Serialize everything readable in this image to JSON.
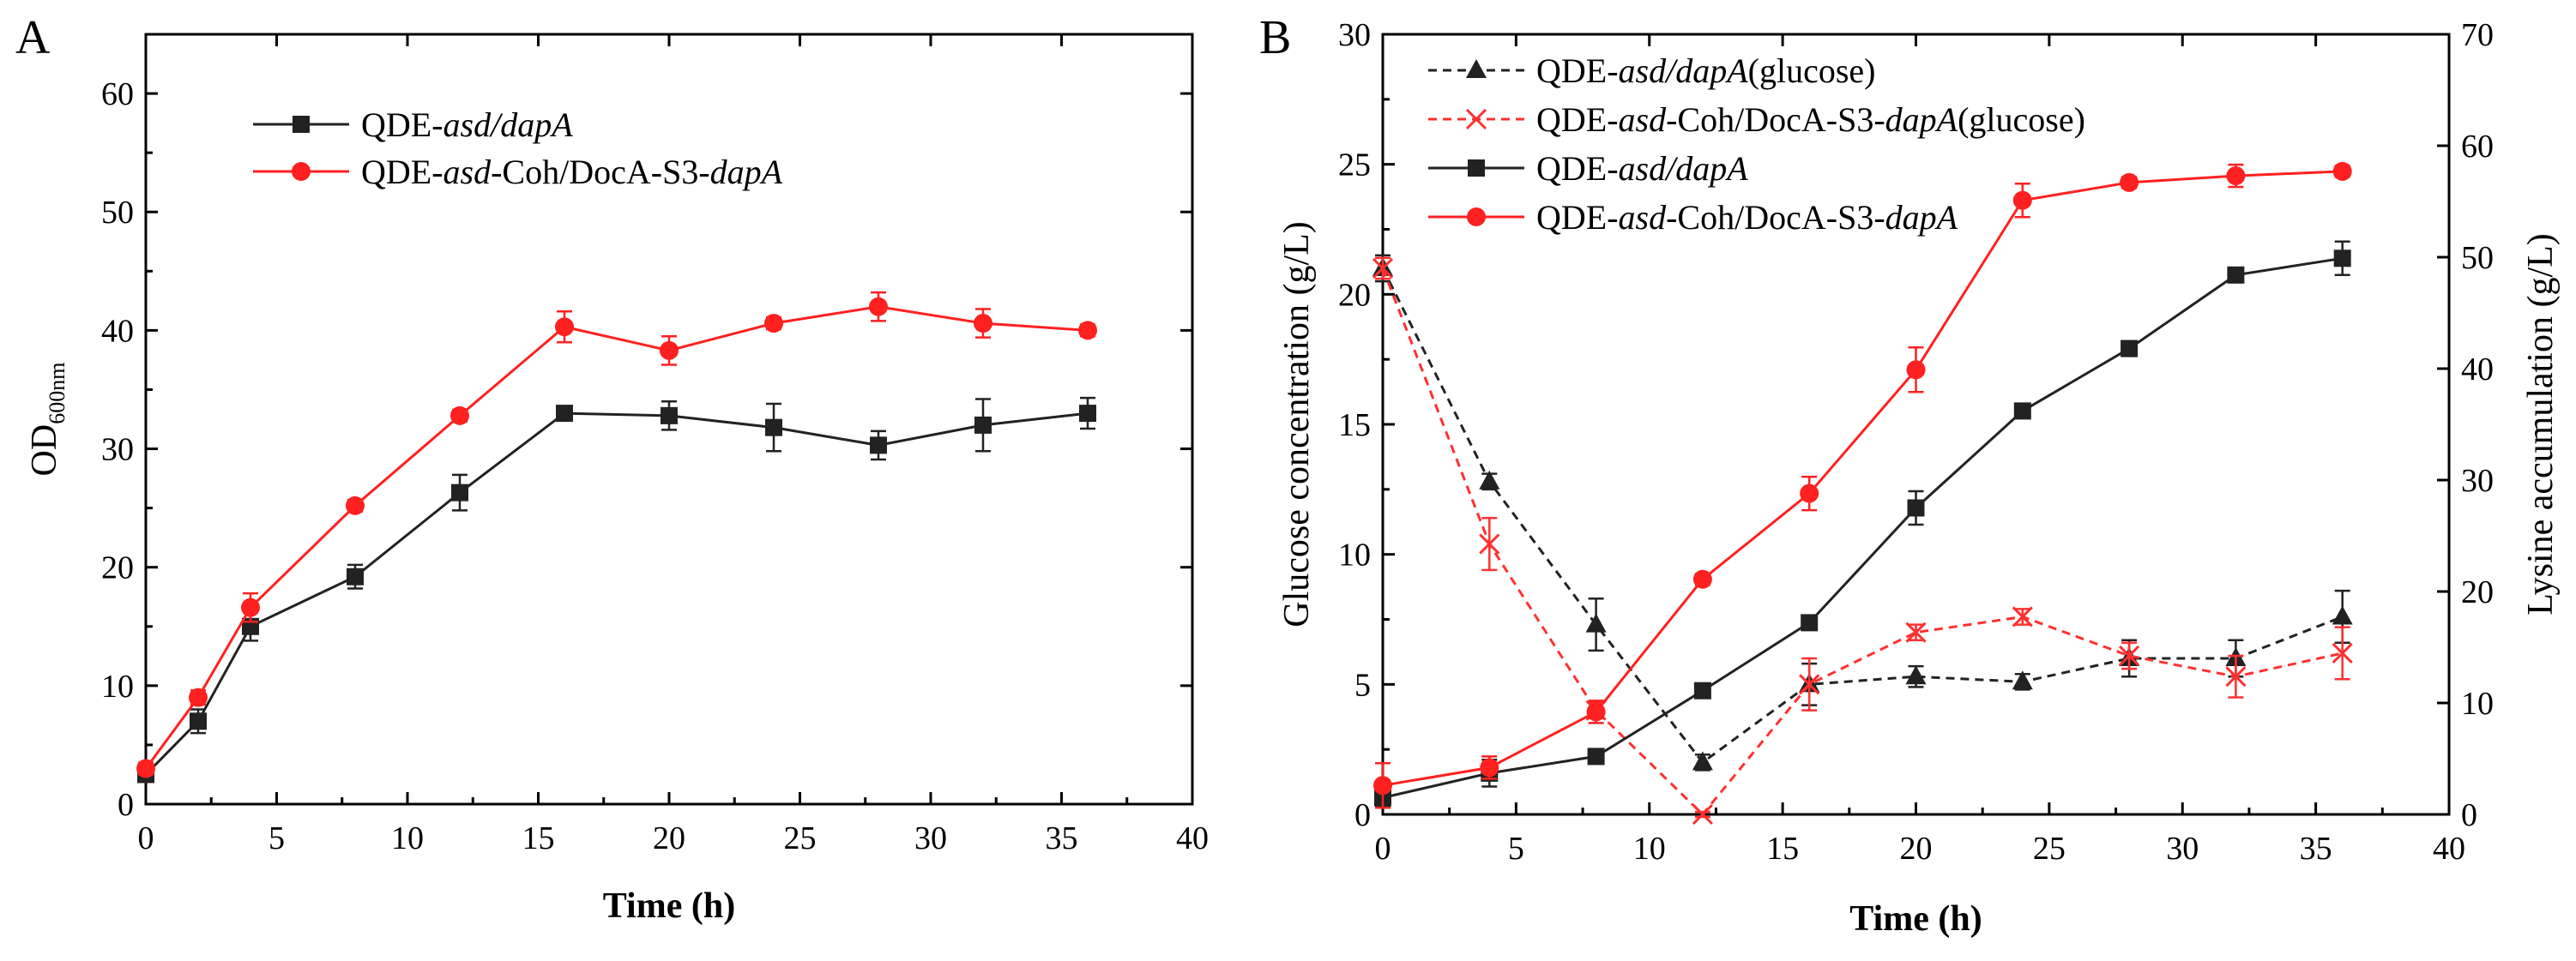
{
  "chart_data": [
    {
      "panel": "A",
      "type": "line",
      "xlabel": "Time (h)",
      "ylabel_main": "OD",
      "ylabel_sub": "600nm",
      "xlim": [
        0,
        40
      ],
      "ylim": [
        0,
        65
      ],
      "xticks": [
        0,
        5,
        10,
        15,
        20,
        25,
        30,
        35,
        40
      ],
      "yticks": [
        0,
        10,
        20,
        30,
        40,
        50,
        60
      ],
      "legend_position": "top-left",
      "series": [
        {
          "name_parts": [
            {
              "t": "QDE-",
              "i": false
            },
            {
              "t": "asd/dapA",
              "i": true
            }
          ],
          "color": "#222222",
          "marker": "square",
          "dash": false,
          "x": [
            0,
            2,
            4,
            8,
            12,
            16,
            20,
            24,
            28,
            32,
            36
          ],
          "y": [
            2.5,
            7,
            15,
            19.2,
            26.3,
            33,
            32.8,
            31.8,
            30.3,
            32,
            33
          ],
          "err": [
            0.6,
            1.0,
            1.2,
            1.0,
            1.5,
            0.4,
            1.2,
            2.0,
            1.2,
            2.2,
            1.3
          ]
        },
        {
          "name_parts": [
            {
              "t": "QDE-",
              "i": false
            },
            {
              "t": "asd",
              "i": true
            },
            {
              "t": "-Coh/DocA-S3-",
              "i": false
            },
            {
              "t": "dapA",
              "i": true
            }
          ],
          "color": "#ff2020",
          "marker": "circle",
          "dash": false,
          "x": [
            0,
            2,
            4,
            8,
            12,
            16,
            20,
            24,
            28,
            32,
            36
          ],
          "y": [
            3,
            9,
            16.6,
            25.2,
            32.8,
            40.3,
            38.3,
            40.6,
            42,
            40.6,
            40
          ],
          "err": [
            0.5,
            0.6,
            1.2,
            0.5,
            0.5,
            1.3,
            1.2,
            0.5,
            1.2,
            1.2,
            0.5
          ]
        }
      ]
    },
    {
      "panel": "B",
      "type": "line",
      "xlabel": "Time (h)",
      "ylabel_left": "Glucose  concentration (g/L)",
      "ylabel_right": "Lysine accumulation (g/L)",
      "xlim": [
        0,
        40
      ],
      "ylim_left": [
        0,
        30
      ],
      "ylim_right": [
        0,
        70
      ],
      "xticks": [
        0,
        5,
        10,
        15,
        20,
        25,
        30,
        35,
        40
      ],
      "yticks_left": [
        0,
        5,
        10,
        15,
        20,
        25,
        30
      ],
      "yticks_right": [
        0,
        10,
        20,
        30,
        40,
        50,
        60,
        70
      ],
      "legend_position": "top-left",
      "series": [
        {
          "name_parts": [
            {
              "t": "QDE-",
              "i": false
            },
            {
              "t": "asd/dapA",
              "i": true
            },
            {
              "t": "(glucose)",
              "i": false
            }
          ],
          "axis": "left",
          "color": "#222222",
          "marker": "triangle",
          "dash": true,
          "x": [
            0,
            4,
            8,
            12,
            16,
            20,
            24,
            28,
            32,
            36
          ],
          "y": [
            21,
            12.8,
            7.3,
            2,
            5,
            5.3,
            5.1,
            6,
            6,
            7.6
          ],
          "err": [
            0.5,
            0.3,
            1.0,
            0.3,
            0.8,
            0.4,
            0.3,
            0.7,
            0.7,
            1.0
          ]
        },
        {
          "name_parts": [
            {
              "t": "QDE-",
              "i": false
            },
            {
              "t": "asd",
              "i": true
            },
            {
              "t": "-Coh/DocA-S3-",
              "i": false
            },
            {
              "t": "dapA",
              "i": true
            },
            {
              "t": "(glucose)",
              "i": false
            }
          ],
          "axis": "left",
          "color": "#ff3030",
          "marker": "x",
          "dash": true,
          "x": [
            0,
            4,
            8,
            12,
            16,
            20,
            24,
            28,
            32,
            36
          ],
          "y": [
            21,
            10.4,
            4,
            0,
            5,
            7,
            7.6,
            6.1,
            5.3,
            6.2
          ],
          "err": [
            0.4,
            1.0,
            0.3,
            0.1,
            1.0,
            0.3,
            0.3,
            0.5,
            0.8,
            1.0
          ]
        },
        {
          "name_parts": [
            {
              "t": "QDE-",
              "i": false
            },
            {
              "t": "asd/dapA",
              "i": true
            }
          ],
          "axis": "right",
          "color": "#222222",
          "marker": "square",
          "dash": false,
          "x": [
            0,
            4,
            8,
            12,
            16,
            20,
            24,
            28,
            32,
            36
          ],
          "y": [
            1.5,
            3.7,
            5.2,
            11.1,
            17.2,
            27.5,
            36.2,
            41.8,
            48.4,
            49.9
          ],
          "err": [
            0.8,
            1.2,
            0.5,
            0.5,
            0.5,
            1.5,
            0.5,
            0.5,
            0.5,
            1.5
          ]
        },
        {
          "name_parts": [
            {
              "t": "QDE-",
              "i": false
            },
            {
              "t": "asd",
              "i": true
            },
            {
              "t": "-Coh/DocA-S3-",
              "i": false
            },
            {
              "t": "dapA",
              "i": true
            }
          ],
          "axis": "right",
          "color": "#ff2020",
          "marker": "circle",
          "dash": false,
          "x": [
            0,
            4,
            8,
            12,
            16,
            20,
            24,
            28,
            32,
            36
          ],
          "y": [
            2.6,
            4.2,
            9.2,
            21.1,
            28.8,
            39.9,
            55.1,
            56.7,
            57.3,
            57.7
          ],
          "err": [
            2.0,
            1.0,
            1.0,
            0.5,
            1.5,
            2.0,
            1.5,
            0.5,
            1.0,
            0.5
          ]
        }
      ]
    }
  ]
}
